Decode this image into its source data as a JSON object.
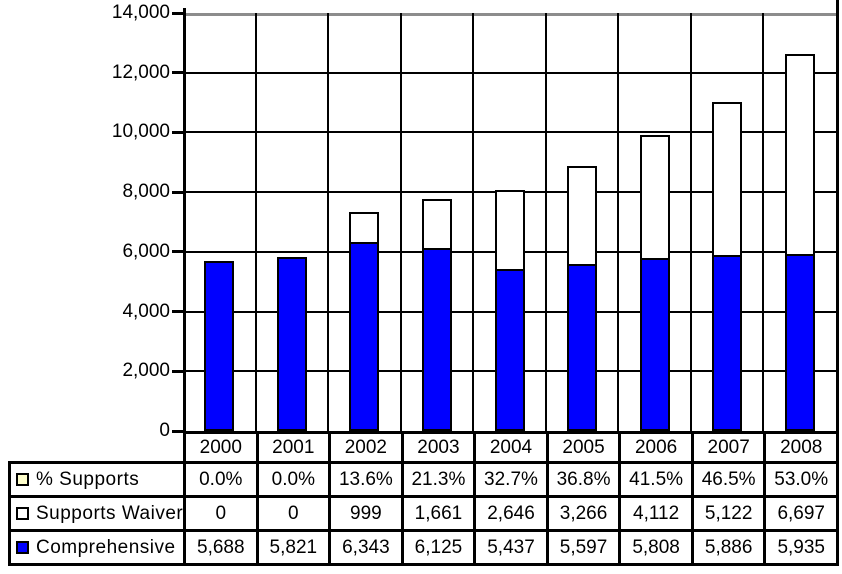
{
  "figure": {
    "background": "#FFFFFF"
  },
  "chart_data": {
    "type": "bar",
    "stacked": true,
    "title": "",
    "xlabel": "",
    "ylabel": "",
    "categories": [
      "2000",
      "2001",
      "2002",
      "2003",
      "2004",
      "2005",
      "2006",
      "2007",
      "2008"
    ],
    "series": [
      {
        "name": "% Supports",
        "role": "table-only",
        "legend_color": "#FFFFCC",
        "values": [
          0.0,
          0.0,
          13.6,
          21.3,
          32.7,
          36.8,
          41.5,
          46.5,
          53.0
        ],
        "display": [
          "0.0%",
          "0.0%",
          "13.6%",
          "21.3%",
          "32.7%",
          "36.8%",
          "41.5%",
          "46.5%",
          "53.0%"
        ]
      },
      {
        "name": "Supports Waiver",
        "role": "bar-top",
        "color": "#FFFFFF",
        "legend_color": "#FFFFFF",
        "values": [
          0,
          0,
          999,
          1661,
          2646,
          3266,
          4112,
          5122,
          6697
        ],
        "display": [
          "0",
          "0",
          "999",
          "1,661",
          "2,646",
          "3,266",
          "4,112",
          "5,122",
          "6,697"
        ]
      },
      {
        "name": "Comprehensive",
        "role": "bar-bottom",
        "color": "#0000FF",
        "legend_color": "#0000FF",
        "values": [
          5688,
          5821,
          6343,
          6125,
          5437,
          5597,
          5808,
          5886,
          5935
        ],
        "display": [
          "5,688",
          "5,821",
          "6,343",
          "6,125",
          "5,437",
          "5,597",
          "5,808",
          "5,886",
          "5,935"
        ]
      }
    ],
    "ylim": [
      0,
      14000
    ],
    "ytick_interval": 2000,
    "yticks": [
      {
        "value": 14000,
        "label": "14,000"
      },
      {
        "value": 12000,
        "label": "12,000"
      },
      {
        "value": 10000,
        "label": "10,000"
      },
      {
        "value": 8000,
        "label": "8,000"
      },
      {
        "value": 6000,
        "label": "6,000"
      },
      {
        "value": 4000,
        "label": "4,000"
      },
      {
        "value": 2000,
        "label": "2,000"
      },
      {
        "value": 0,
        "label": "0"
      }
    ],
    "grid": {
      "horizontal": true,
      "vertical": true
    },
    "legend_position": "table-left",
    "colors": {
      "bar_outline": "#000000",
      "gridline": "#000000",
      "plot_top_line": "#8C8C8C",
      "axis": "#000000",
      "table_border": "#000000",
      "text": "#000000"
    }
  }
}
